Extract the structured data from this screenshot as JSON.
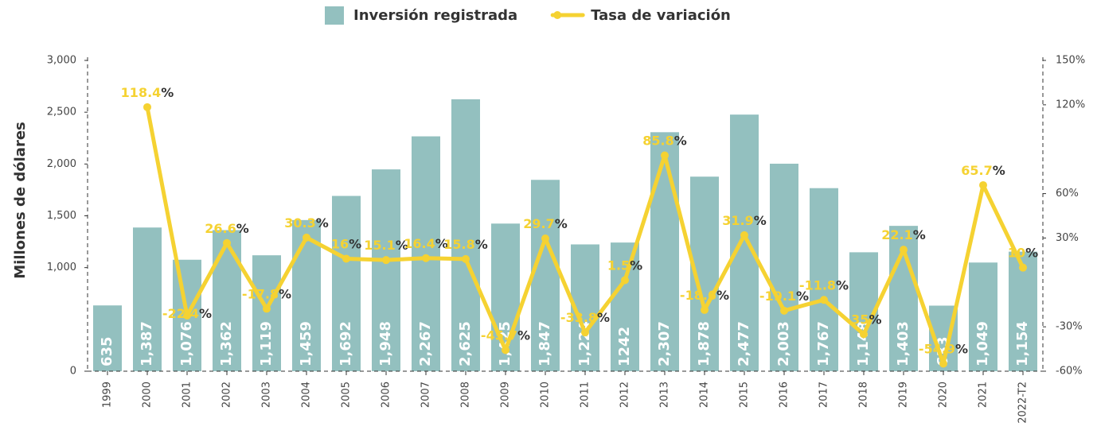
{
  "chart_data": {
    "type": "bar",
    "y_axis_label": "Millones de dólares",
    "categories": [
      "1999",
      "2000",
      "2001",
      "2002",
      "2003",
      "2004",
      "2005",
      "2006",
      "2007",
      "2008",
      "2009",
      "2010",
      "2011",
      "2012",
      "2013",
      "2014",
      "2015",
      "2016",
      "2017",
      "2018",
      "2019",
      "2020",
      "2021",
      "2022-T2"
    ],
    "series": [
      {
        "name": "Inversión registrada",
        "color": "#93c0bf",
        "values": [
          635,
          1387,
          1076,
          1362,
          1119,
          1459,
          1692,
          1948,
          2267,
          2625,
          1425,
          1847,
          1224,
          1242,
          2307,
          1878,
          2477,
          2003,
          1767,
          1148,
          1403,
          633,
          1049,
          1154
        ],
        "value_labels": [
          "635",
          "1,387",
          "1,076",
          "1,362",
          "1,119",
          "1,459",
          "1,692",
          "1,948",
          "2,267",
          "2,625",
          "1,425",
          "1,847",
          "1,224",
          "1242",
          "2,307",
          "1,878",
          "2,477",
          "2,003",
          "1,767",
          "1,148",
          "1,403",
          "633",
          "1,049",
          "1,154"
        ]
      },
      {
        "name": "Tasa de variación",
        "color": "#f5d232",
        "type": "line",
        "axis": "y2",
        "values": [
          null,
          118.4,
          -22.4,
          26.6,
          -17.8,
          30.3,
          16,
          15.1,
          16.4,
          15.8,
          -45.7,
          29.7,
          -33.8,
          1.5,
          85.8,
          -18.6,
          31.9,
          -19.1,
          -11.8,
          -35,
          22.1,
          -54.9,
          65.7,
          10
        ],
        "value_labels": [
          null,
          "118.4%",
          "-22.4%",
          "26.6%",
          "-17.8%",
          "30.3%",
          "16%",
          "15.1%",
          "16.4%",
          "15.8%",
          "-45.7%",
          "29.7%",
          "-33.8%",
          "1.5%",
          "85.8%",
          "-18.6%",
          "31.9%",
          "-19.1%",
          "-11.8%",
          "-35%",
          "22.1%",
          "-54.9%",
          "65.7%",
          "10%"
        ]
      }
    ],
    "ylim": [
      0,
      3000
    ],
    "yticks": [
      0,
      {
        "value": 1000,
        "label": "1,000"
      },
      {
        "value": 1500,
        "label": "1,500"
      },
      {
        "value": 2000,
        "label": "2,000"
      },
      {
        "value": 2500,
        "label": "2,500"
      },
      {
        "value": 3000,
        "label": "3,000"
      }
    ],
    "y2lim": [
      -60,
      150
    ],
    "y2ticks": [
      {
        "value": -60,
        "label": "-60%"
      },
      {
        "value": -30,
        "label": "-30%"
      },
      {
        "value": 30,
        "label": "30%"
      },
      {
        "value": 60,
        "label": "60%"
      },
      {
        "value": 120,
        "label": "120%"
      },
      {
        "value": 150,
        "label": "150%"
      }
    ],
    "legend": "top"
  }
}
